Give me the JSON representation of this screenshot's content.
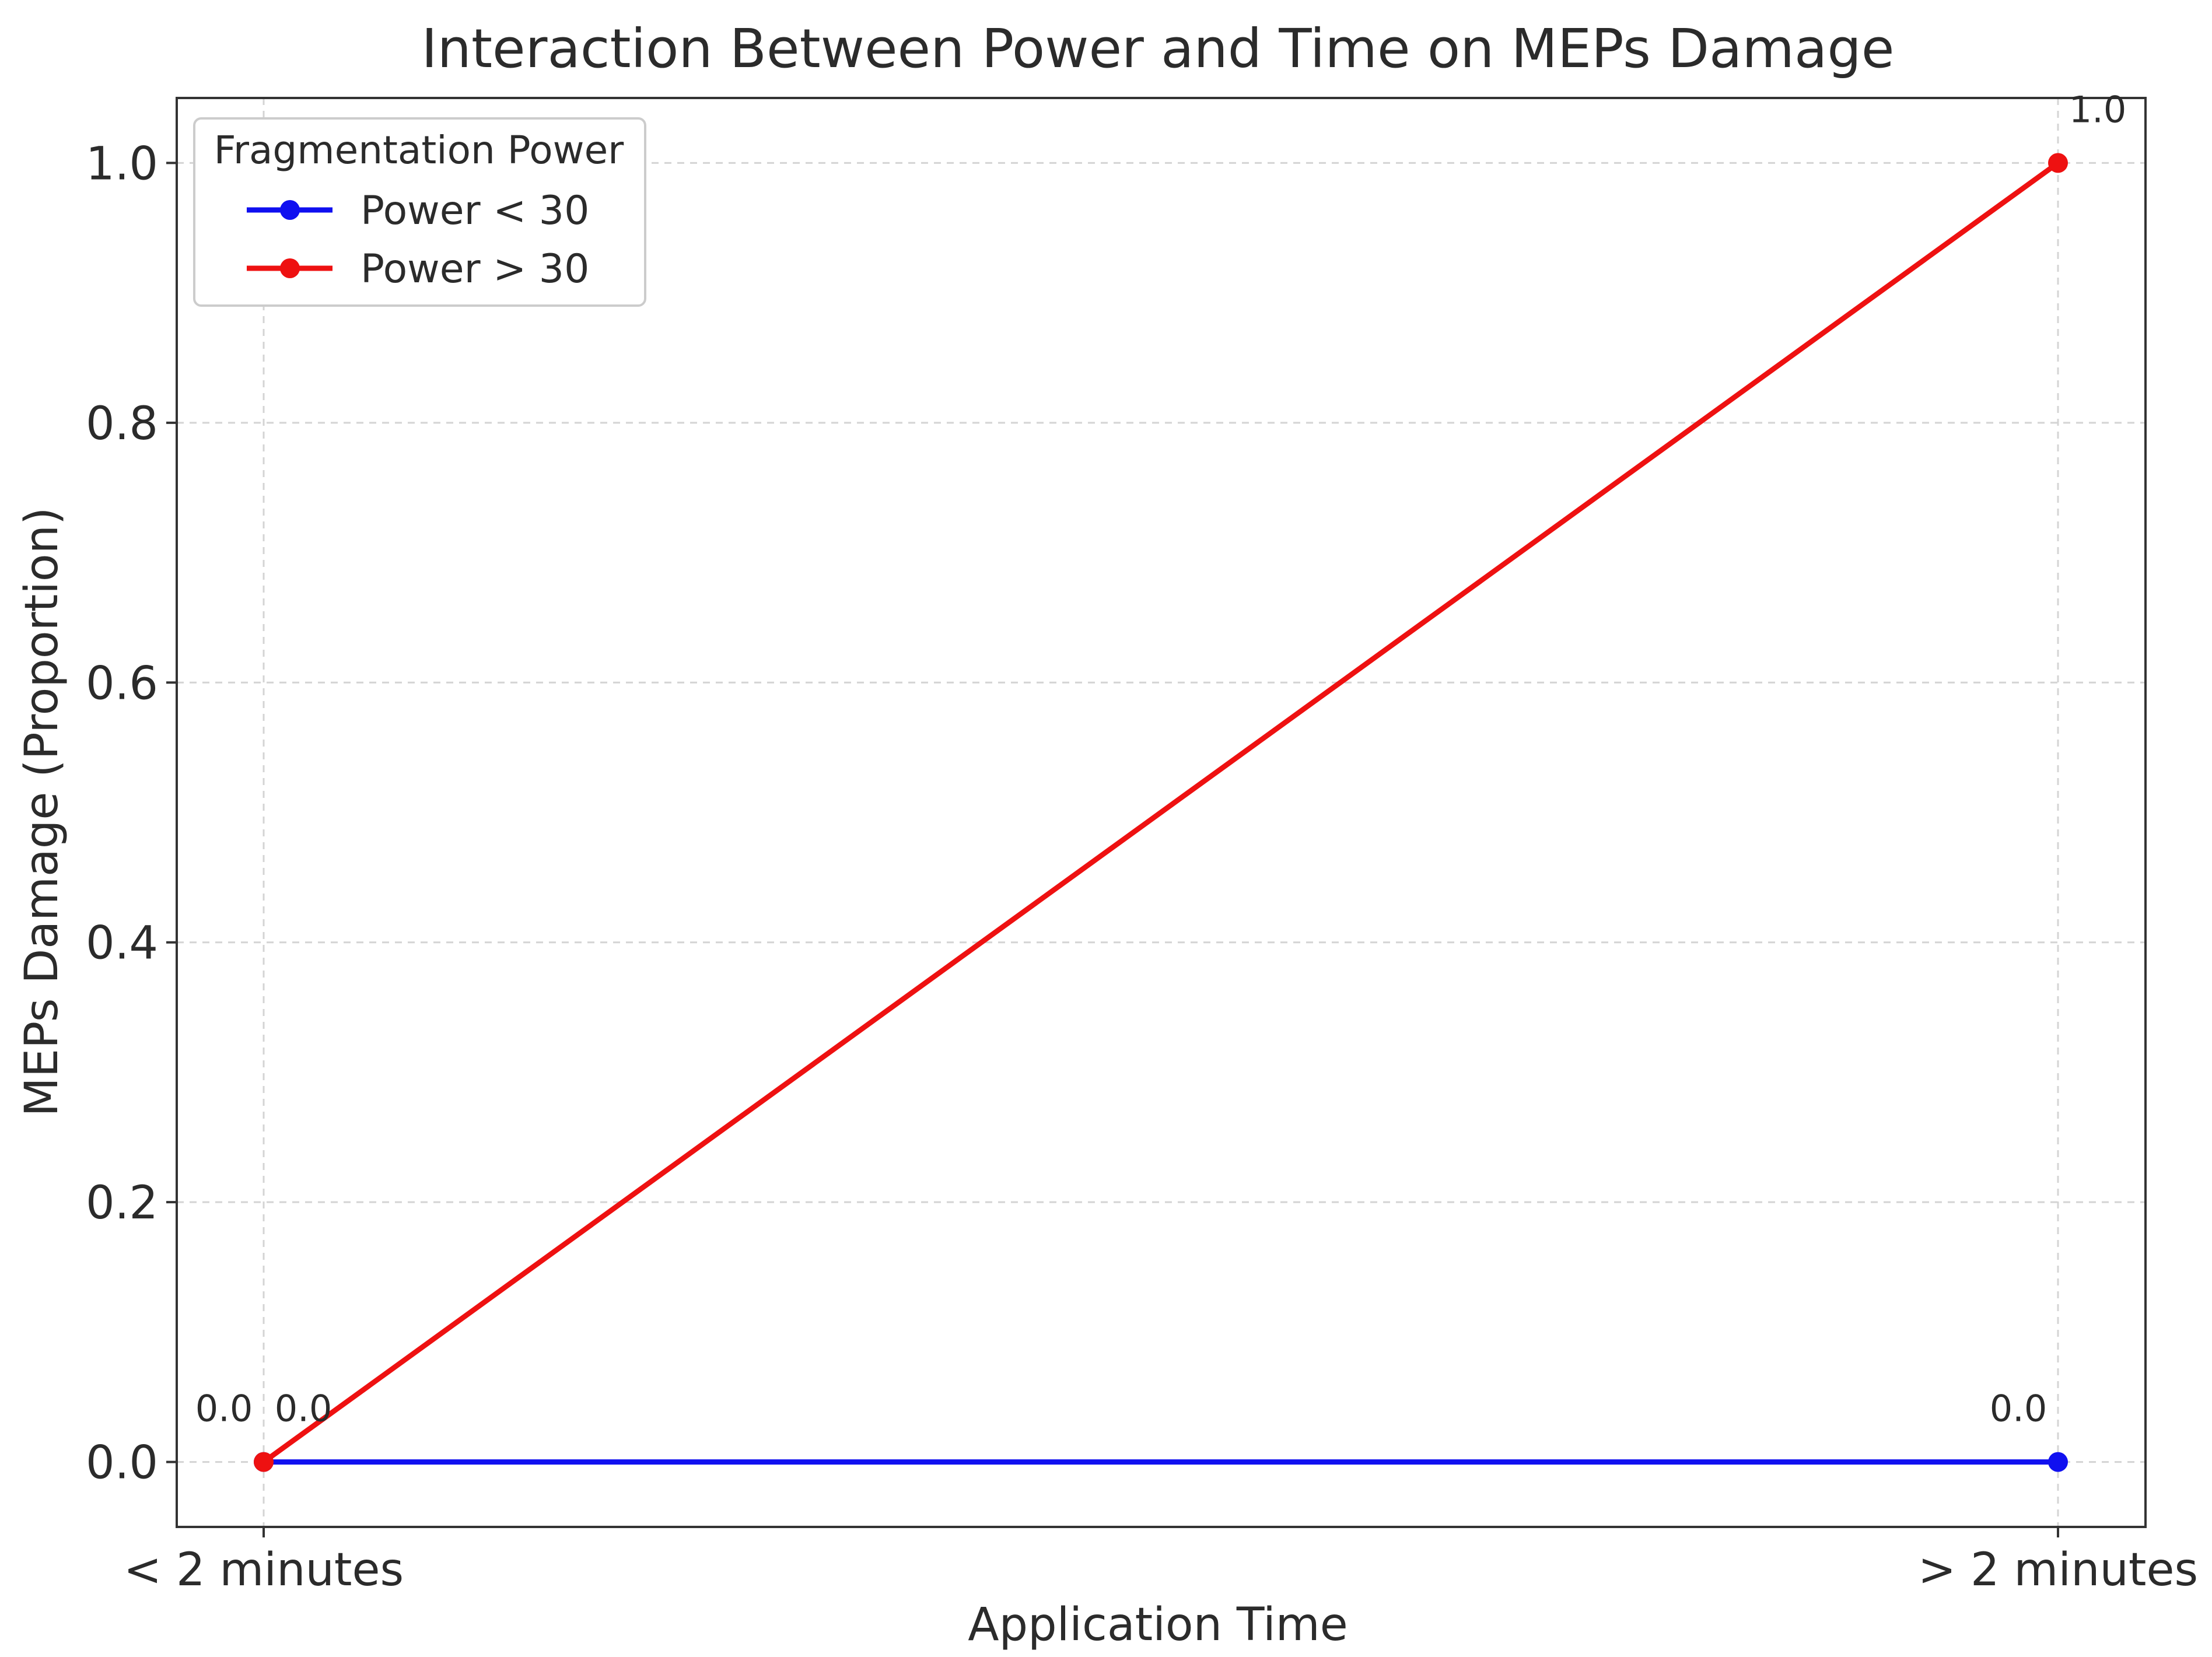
{
  "chart_data": {
    "type": "line",
    "title": "Interaction Between Power and Time on MEPs Damage",
    "xlabel": "Application Time",
    "ylabel": "MEPs Damage (Proportion)",
    "categories": [
      "< 2 minutes",
      "> 2 minutes"
    ],
    "ylim": [
      -0.05,
      1.05
    ],
    "yticks": [
      "0.0",
      "0.2",
      "0.4",
      "0.6",
      "0.8",
      "1.0"
    ],
    "grid": true,
    "legend": {
      "title": "Fragmentation Power",
      "placement": "top-left"
    },
    "series": [
      {
        "name": "Power < 30",
        "values": [
          0.0,
          0.0
        ],
        "labels": [
          "0.0",
          "0.0"
        ],
        "color": "#1010f0"
      },
      {
        "name": "Power > 30",
        "values": [
          0.0,
          1.0
        ],
        "labels": [
          "0.0",
          "1.0"
        ],
        "color": "#ee1111"
      }
    ]
  }
}
